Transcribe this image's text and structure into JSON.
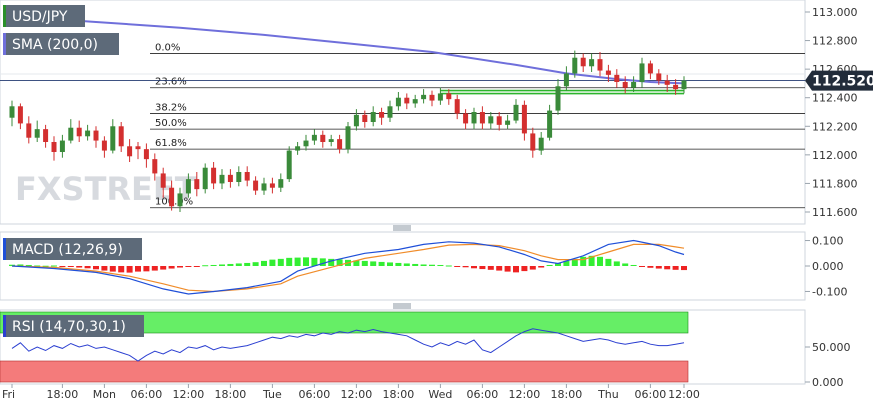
{
  "colors": {
    "up": "#3a8a3a",
    "down": "#d32f2f",
    "sma": "#6f6fdb",
    "macd_line": "#1f4fd8",
    "signal_line": "#f08c2a",
    "hist_up": "#33ee33",
    "hist_down": "#ee2222",
    "rsi_line": "#2b3fd1",
    "rsi_overbought": "#66ee66",
    "rsi_oversold": "#f47b7b",
    "price_badge": "#222c3a",
    "fib_line": "#222222"
  },
  "chart_data": [
    {
      "type": "candlestick",
      "title": "USD/JPY",
      "indicator_label": "SMA (200,0)",
      "ylim": [
        111.6,
        113.0
      ],
      "y_ticks": [
        "113.000",
        "112.800",
        "112.600",
        "112.400",
        "112.200",
        "112.000",
        "111.800",
        "111.600"
      ],
      "last_price": "112.520",
      "fib_levels": [
        {
          "label": "0.0%",
          "price": 112.71
        },
        {
          "label": "23.6%",
          "price": 112.47
        },
        {
          "label": "38.2%",
          "price": 112.29
        },
        {
          "label": "50.0%",
          "price": 112.18
        },
        {
          "label": "61.8%",
          "price": 112.04
        },
        {
          "label": "100.0%",
          "price": 111.63
        }
      ],
      "support_line": {
        "price": 112.45,
        "start_index": 51,
        "end_index": 80
      },
      "candles": [
        [
          112.26,
          112.34,
          112.38,
          112.2
        ],
        [
          112.34,
          112.22,
          112.36,
          112.18
        ],
        [
          112.22,
          112.12,
          112.27,
          112.08
        ],
        [
          112.12,
          112.18,
          112.24,
          112.09
        ],
        [
          112.18,
          112.09,
          112.21,
          112.05
        ],
        [
          112.09,
          112.02,
          112.13,
          111.96
        ],
        [
          112.02,
          112.1,
          112.14,
          111.98
        ],
        [
          112.1,
          112.19,
          112.25,
          112.08
        ],
        [
          112.19,
          112.13,
          112.24,
          112.09
        ],
        [
          112.13,
          112.17,
          112.21,
          112.1
        ],
        [
          112.17,
          112.1,
          112.2,
          112.05
        ],
        [
          112.1,
          112.03,
          112.13,
          111.98
        ],
        [
          112.03,
          112.2,
          112.25,
          112.01
        ],
        [
          112.2,
          112.06,
          112.23,
          112.02
        ],
        [
          112.06,
          111.99,
          112.11,
          111.95
        ],
        [
          112.06,
          112.04,
          112.09,
          111.97
        ],
        [
          112.04,
          111.97,
          112.08,
          111.91
        ],
        [
          111.97,
          111.87,
          112.01,
          111.82
        ],
        [
          111.87,
          111.77,
          111.91,
          111.7
        ],
        [
          111.77,
          111.64,
          111.82,
          111.61
        ],
        [
          111.64,
          111.73,
          111.77,
          111.6
        ],
        [
          111.73,
          111.83,
          111.87,
          111.7
        ],
        [
          111.83,
          111.76,
          111.88,
          111.71
        ],
        [
          111.76,
          111.91,
          111.94,
          111.73
        ],
        [
          111.91,
          111.8,
          111.95,
          111.76
        ],
        [
          111.8,
          111.86,
          111.9,
          111.76
        ],
        [
          111.86,
          111.81,
          111.9,
          111.77
        ],
        [
          111.81,
          111.88,
          111.92,
          111.78
        ],
        [
          111.88,
          111.82,
          111.92,
          111.78
        ],
        [
          111.82,
          111.75,
          111.85,
          111.72
        ],
        [
          111.75,
          111.8,
          111.84,
          111.72
        ],
        [
          111.8,
          111.77,
          111.84,
          111.73
        ],
        [
          111.77,
          111.83,
          111.87,
          111.74
        ],
        [
          111.83,
          112.03,
          112.06,
          111.81
        ],
        [
          112.03,
          112.06,
          112.09,
          112.0
        ],
        [
          112.06,
          112.1,
          112.14,
          112.03
        ],
        [
          112.1,
          112.14,
          112.18,
          112.07
        ],
        [
          112.14,
          112.09,
          112.17,
          112.05
        ],
        [
          112.09,
          112.11,
          112.14,
          112.06
        ],
        [
          112.11,
          112.04,
          112.14,
          112.01
        ],
        [
          112.04,
          112.2,
          112.23,
          112.01
        ],
        [
          112.2,
          112.28,
          112.32,
          112.17
        ],
        [
          112.28,
          112.23,
          112.31,
          112.19
        ],
        [
          112.23,
          112.3,
          112.34,
          112.2
        ],
        [
          112.3,
          112.26,
          112.33,
          112.21
        ],
        [
          112.26,
          112.34,
          112.38,
          112.23
        ],
        [
          112.34,
          112.4,
          112.44,
          112.31
        ],
        [
          112.4,
          112.36,
          112.43,
          112.32
        ],
        [
          112.36,
          112.39,
          112.42,
          112.33
        ],
        [
          112.39,
          112.42,
          112.46,
          112.36
        ],
        [
          112.42,
          112.38,
          112.45,
          112.34
        ],
        [
          112.38,
          112.43,
          112.47,
          112.35
        ],
        [
          112.43,
          112.39,
          112.46,
          112.35
        ],
        [
          112.39,
          112.29,
          112.42,
          112.25
        ],
        [
          112.29,
          112.22,
          112.32,
          112.18
        ],
        [
          112.22,
          112.3,
          112.33,
          112.18
        ],
        [
          112.3,
          112.22,
          112.34,
          112.18
        ],
        [
          112.22,
          112.27,
          112.3,
          112.18
        ],
        [
          112.27,
          112.21,
          112.3,
          112.17
        ],
        [
          112.21,
          112.24,
          112.28,
          112.18
        ],
        [
          112.24,
          112.35,
          112.39,
          112.22
        ],
        [
          112.35,
          112.15,
          112.38,
          112.1
        ],
        [
          112.15,
          112.03,
          112.19,
          111.98
        ],
        [
          112.03,
          112.12,
          112.16,
          112.0
        ],
        [
          112.12,
          112.31,
          112.35,
          112.1
        ],
        [
          112.31,
          112.48,
          112.53,
          112.28
        ],
        [
          112.48,
          112.57,
          112.62,
          112.45
        ],
        [
          112.57,
          112.68,
          112.73,
          112.54
        ],
        [
          112.68,
          112.62,
          112.71,
          112.58
        ],
        [
          112.62,
          112.67,
          112.71,
          112.58
        ],
        [
          112.67,
          112.59,
          112.72,
          112.55
        ],
        [
          112.59,
          112.56,
          112.63,
          112.51
        ],
        [
          112.56,
          112.51,
          112.6,
          112.47
        ],
        [
          112.51,
          112.47,
          112.55,
          112.43
        ],
        [
          112.47,
          112.51,
          112.55,
          112.44
        ],
        [
          112.51,
          112.64,
          112.68,
          112.47
        ],
        [
          112.64,
          112.57,
          112.66,
          112.53
        ],
        [
          112.57,
          112.52,
          112.6,
          112.49
        ],
        [
          112.52,
          112.49,
          112.56,
          112.44
        ],
        [
          112.49,
          112.46,
          112.53,
          112.42
        ],
        [
          112.46,
          112.52,
          112.55,
          112.43
        ]
      ],
      "sma": [
        [
          0,
          112.97
        ],
        [
          10,
          112.93
        ],
        [
          20,
          112.89
        ],
        [
          30,
          112.84
        ],
        [
          40,
          112.78
        ],
        [
          50,
          112.72
        ],
        [
          60,
          112.63
        ],
        [
          66,
          112.57
        ],
        [
          72,
          112.53
        ],
        [
          76,
          112.51
        ],
        [
          80,
          112.5
        ]
      ]
    },
    {
      "type": "macd",
      "label": "MACD (12,26,9)",
      "ylim": [
        -0.11,
        0.11
      ],
      "y_ticks": [
        "0.100",
        "0.000",
        "-0.100"
      ],
      "histogram": [
        0.005,
        0.006,
        0.004,
        0.002,
        0.001,
        0.002,
        -0.002,
        -0.004,
        -0.006,
        -0.009,
        -0.013,
        -0.018,
        -0.022,
        -0.025,
        -0.026,
        -0.022,
        -0.021,
        -0.018,
        -0.014,
        -0.01,
        -0.006,
        -0.003,
        -0.001,
        0.003,
        0.004,
        0.006,
        0.008,
        0.01,
        0.012,
        0.015,
        0.02,
        0.025,
        0.028,
        0.032,
        0.033,
        0.034,
        0.032,
        0.03,
        0.028,
        0.026,
        0.024,
        0.022,
        0.02,
        0.018,
        0.016,
        0.014,
        0.012,
        0.01,
        0.008,
        0.006,
        0.005,
        0.004,
        0.002,
        -0.002,
        -0.005,
        -0.009,
        -0.012,
        -0.015,
        -0.018,
        -0.022,
        -0.025,
        -0.02,
        -0.014,
        -0.006,
        0.004,
        0.012,
        0.02,
        0.028,
        0.036,
        0.04,
        0.036,
        0.028,
        0.018,
        0.01,
        0.004,
        -0.003,
        -0.007,
        -0.01,
        -0.013,
        -0.015,
        -0.016
      ],
      "macd_line": [
        [
          0,
          0.0
        ],
        [
          5,
          -0.01
        ],
        [
          10,
          -0.025
        ],
        [
          14,
          -0.05
        ],
        [
          18,
          -0.09
        ],
        [
          21,
          -0.11
        ],
        [
          24,
          -0.1
        ],
        [
          28,
          -0.085
        ],
        [
          32,
          -0.06
        ],
        [
          34,
          -0.02
        ],
        [
          38,
          0.02
        ],
        [
          42,
          0.05
        ],
        [
          46,
          0.065
        ],
        [
          49,
          0.085
        ],
        [
          52,
          0.095
        ],
        [
          55,
          0.09
        ],
        [
          58,
          0.075
        ],
        [
          61,
          0.045
        ],
        [
          63,
          0.02
        ],
        [
          65,
          0.01
        ],
        [
          68,
          0.04
        ],
        [
          71,
          0.085
        ],
        [
          74,
          0.1
        ],
        [
          77,
          0.08
        ],
        [
          79,
          0.055
        ],
        [
          80,
          0.045
        ]
      ],
      "signal_line": [
        [
          0,
          0.0
        ],
        [
          5,
          -0.005
        ],
        [
          10,
          -0.02
        ],
        [
          14,
          -0.04
        ],
        [
          18,
          -0.07
        ],
        [
          21,
          -0.095
        ],
        [
          24,
          -0.1
        ],
        [
          28,
          -0.09
        ],
        [
          32,
          -0.07
        ],
        [
          34,
          -0.04
        ],
        [
          38,
          -0.005
        ],
        [
          42,
          0.03
        ],
        [
          46,
          0.05
        ],
        [
          49,
          0.065
        ],
        [
          52,
          0.082
        ],
        [
          55,
          0.085
        ],
        [
          58,
          0.08
        ],
        [
          61,
          0.06
        ],
        [
          63,
          0.04
        ],
        [
          65,
          0.025
        ],
        [
          68,
          0.025
        ],
        [
          71,
          0.055
        ],
        [
          74,
          0.085
        ],
        [
          77,
          0.085
        ],
        [
          79,
          0.075
        ],
        [
          80,
          0.07
        ]
      ]
    },
    {
      "type": "rsi",
      "label": "RSI (14,70,30,1)",
      "ylim": [
        0,
        100
      ],
      "y_ticks": [
        "50.000",
        "0.000"
      ],
      "overbought": 70,
      "oversold": 30,
      "values": [
        48,
        56,
        44,
        50,
        45,
        52,
        48,
        55,
        50,
        53,
        48,
        50,
        46,
        42,
        38,
        30,
        38,
        44,
        40,
        46,
        42,
        50,
        48,
        52,
        46,
        50,
        48,
        50,
        52,
        56,
        60,
        64,
        62,
        66,
        64,
        68,
        66,
        70,
        68,
        72,
        70,
        74,
        72,
        75,
        72,
        70,
        68,
        66,
        60,
        54,
        50,
        56,
        52,
        58,
        54,
        60,
        46,
        42,
        50,
        58,
        66,
        72,
        76,
        74,
        72,
        70,
        66,
        62,
        58,
        60,
        62,
        60,
        56,
        54,
        56,
        58,
        54,
        52,
        52,
        54,
        56
      ]
    }
  ],
  "time_axis": {
    "labels": [
      {
        "text": "Fri",
        "index": 0
      },
      {
        "text": "18:00",
        "index": 6
      },
      {
        "text": "Mon",
        "index": 11
      },
      {
        "text": "06:00",
        "index": 16
      },
      {
        "text": "12:00",
        "index": 21
      },
      {
        "text": "18:00",
        "index": 26
      },
      {
        "text": "Tue",
        "index": 31
      },
      {
        "text": "06:00",
        "index": 36
      },
      {
        "text": "12:00",
        "index": 41
      },
      {
        "text": "18:00",
        "index": 46
      },
      {
        "text": "Wed",
        "index": 51
      },
      {
        "text": "06:00",
        "index": 56
      },
      {
        "text": "12:00",
        "index": 61
      },
      {
        "text": "18:00",
        "index": 66
      },
      {
        "text": "Thu",
        "index": 71
      },
      {
        "text": "06:00",
        "index": 76
      },
      {
        "text": "12:00",
        "index": 80
      }
    ]
  },
  "watermark": "FXSTREET"
}
